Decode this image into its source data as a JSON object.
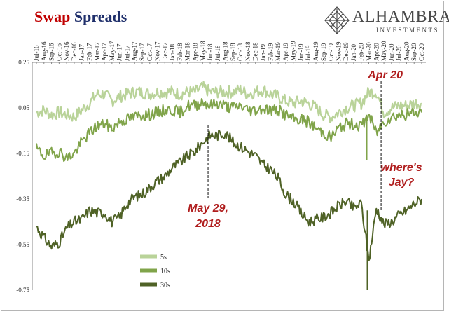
{
  "title": {
    "part1": "Swap",
    "part2": "Spreads"
  },
  "logo": {
    "name": "ALHAMBRA",
    "sub": "INVESTMENTS"
  },
  "colors": {
    "s5": "#b9d399",
    "s10": "#80a44a",
    "s30": "#4f6226",
    "annotation": "#b01e1e",
    "title_red": "#c00000",
    "title_blue": "#1f2f6b"
  },
  "chart_data": {
    "type": "line",
    "title": "Swap Spreads",
    "xlabel": "",
    "ylabel": "",
    "ylim": [
      -0.75,
      0.25
    ],
    "yticks": [
      "0.25",
      "0.05",
      "-0.15",
      "-0.35",
      "-0.55",
      "-0.75"
    ],
    "xticks": [
      "Jul-16",
      "Aug-16",
      "Sep-16",
      "Oct-16",
      "Nov-16",
      "Dec-16",
      "Jan-17",
      "Feb-17",
      "Mar-17",
      "Apr-17",
      "May-17",
      "Jun-17",
      "Jul-17",
      "Aug-17",
      "Sep-17",
      "Oct-17",
      "Nov-17",
      "Dec-17",
      "Jan-18",
      "Feb-18",
      "Mar-18",
      "Apr-18",
      "May-18",
      "Jun-18",
      "Jul-18",
      "Aug-18",
      "Sep-18",
      "Oct-18",
      "Nov-18",
      "Dec-18",
      "Jan-19",
      "Feb-19",
      "Mar-19",
      "Apr-19",
      "May-19",
      "Jun-19",
      "Jul-19",
      "Aug-19",
      "Sep-19",
      "Oct-19",
      "Nov-19",
      "Dec-19",
      "Jan-20",
      "Feb-20",
      "Mar-20",
      "Apr-20",
      "May-20",
      "Jun-20",
      "Jul-20",
      "Aug-20",
      "Sep-20",
      "Oct-20"
    ],
    "grid": false,
    "legend_position": "bottom-left",
    "x": [
      "2016-07",
      "2016-08",
      "2016-09",
      "2016-10",
      "2016-11",
      "2016-12",
      "2017-01",
      "2017-02",
      "2017-03",
      "2017-04",
      "2017-05",
      "2017-06",
      "2017-07",
      "2017-08",
      "2017-09",
      "2017-10",
      "2017-11",
      "2017-12",
      "2018-01",
      "2018-02",
      "2018-03",
      "2018-04",
      "2018-05",
      "2018-06",
      "2018-07",
      "2018-08",
      "2018-09",
      "2018-10",
      "2018-11",
      "2018-12",
      "2019-01",
      "2019-02",
      "2019-03",
      "2019-04",
      "2019-05",
      "2019-06",
      "2019-07",
      "2019-08",
      "2019-09",
      "2019-10",
      "2019-11",
      "2019-12",
      "2020-01",
      "2020-02",
      "2020-03",
      "2020-04",
      "2020-05",
      "2020-06",
      "2020-07",
      "2020-08",
      "2020-09",
      "2020-10"
    ],
    "series": [
      {
        "name": "5s",
        "values": [
          0.03,
          0.04,
          0.02,
          0.03,
          0.02,
          0.01,
          0.04,
          0.07,
          0.11,
          0.11,
          0.08,
          0.1,
          0.11,
          0.12,
          0.12,
          0.11,
          0.12,
          0.12,
          0.12,
          0.11,
          0.12,
          0.12,
          0.14,
          0.12,
          0.12,
          0.12,
          0.12,
          0.13,
          0.11,
          0.12,
          0.13,
          0.11,
          0.1,
          0.08,
          0.07,
          0.08,
          0.07,
          0.05,
          0.02,
          0.01,
          0.03,
          0.05,
          0.06,
          0.07,
          0.12,
          0.12,
          0.03,
          0.05,
          0.06,
          0.06,
          0.07,
          0.07
        ]
      },
      {
        "name": "10s",
        "values": [
          -0.13,
          -0.16,
          -0.15,
          -0.14,
          -0.17,
          -0.15,
          -0.1,
          -0.06,
          -0.03,
          -0.02,
          -0.04,
          -0.01,
          0.0,
          0.01,
          0.02,
          0.02,
          0.03,
          0.04,
          0.04,
          0.03,
          0.06,
          0.06,
          0.08,
          0.06,
          0.07,
          0.06,
          0.05,
          0.06,
          0.04,
          0.04,
          0.05,
          0.04,
          0.04,
          0.02,
          0.0,
          0.0,
          -0.01,
          -0.04,
          -0.06,
          -0.08,
          -0.04,
          -0.02,
          -0.02,
          -0.03,
          0.02,
          -0.06,
          -0.01,
          0.01,
          0.02,
          0.02,
          0.03,
          0.03
        ]
      },
      {
        "name": "30s",
        "values": [
          -0.47,
          -0.52,
          -0.56,
          -0.54,
          -0.48,
          -0.45,
          -0.44,
          -0.4,
          -0.41,
          -0.41,
          -0.45,
          -0.43,
          -0.37,
          -0.34,
          -0.33,
          -0.3,
          -0.27,
          -0.25,
          -0.21,
          -0.19,
          -0.16,
          -0.14,
          -0.1,
          -0.07,
          -0.07,
          -0.06,
          -0.1,
          -0.12,
          -0.14,
          -0.16,
          -0.2,
          -0.22,
          -0.26,
          -0.33,
          -0.36,
          -0.41,
          -0.45,
          -0.44,
          -0.43,
          -0.41,
          -0.38,
          -0.36,
          -0.39,
          -0.37,
          -0.62,
          -0.39,
          -0.46,
          -0.45,
          -0.42,
          -0.4,
          -0.37,
          -0.35
        ]
      }
    ],
    "annotations": [
      {
        "lines": [
          "May 29,",
          "2018"
        ],
        "x": "2018-06"
      },
      {
        "lines": [
          "Apr 20"
        ],
        "x": "2020-05"
      },
      {
        "lines": [
          "where's",
          "Jay?"
        ],
        "x": "2020-05"
      }
    ]
  }
}
